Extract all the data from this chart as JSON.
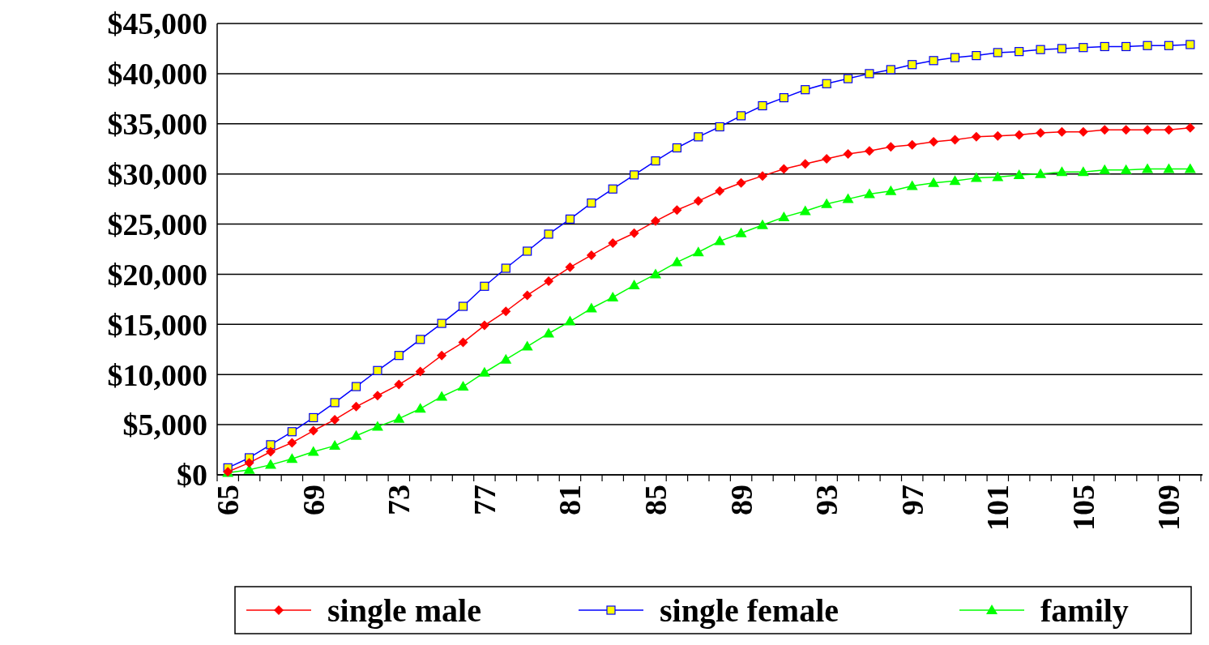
{
  "chart_data": {
    "type": "line",
    "categories": [
      "65",
      null,
      null,
      null,
      "69",
      null,
      null,
      null,
      "73",
      null,
      null,
      null,
      "77",
      null,
      null,
      null,
      "81",
      null,
      null,
      null,
      "85",
      null,
      null,
      null,
      "89",
      null,
      null,
      null,
      "93",
      null,
      null,
      null,
      "97",
      null,
      null,
      null,
      "101",
      null,
      null,
      null,
      "105",
      null,
      null,
      null,
      "109",
      null
    ],
    "series": [
      {
        "name": "single male",
        "color": "#ff0000",
        "marker": "diamond",
        "values": [
          300,
          1200,
          2300,
          3200,
          4400,
          5500,
          6800,
          7900,
          9000,
          10300,
          11900,
          13200,
          14900,
          16300,
          17900,
          19300,
          20700,
          21900,
          23100,
          24100,
          25300,
          26400,
          27300,
          28300,
          29100,
          29800,
          30500,
          31000,
          31500,
          32000,
          32300,
          32700,
          32900,
          33200,
          33400,
          33700,
          33800,
          33900,
          34100,
          34200,
          34200,
          34400,
          34400,
          34400,
          34400,
          34600
        ]
      },
      {
        "name": "single female",
        "color": "#0000ff",
        "marker": "square",
        "values": [
          700,
          1700,
          3000,
          4300,
          5700,
          7200,
          8800,
          10400,
          11900,
          13500,
          15100,
          16800,
          18800,
          20600,
          22300,
          24000,
          25500,
          27100,
          28500,
          29900,
          31300,
          32600,
          33700,
          34700,
          35800,
          36800,
          37600,
          38400,
          39000,
          39500,
          40000,
          40400,
          40900,
          41300,
          41600,
          41800,
          42100,
          42200,
          42400,
          42500,
          42600,
          42700,
          42700,
          42800,
          42800,
          42900
        ]
      },
      {
        "name": "family",
        "color": "#00ff00",
        "marker": "triangle",
        "values": [
          200,
          500,
          1000,
          1600,
          2300,
          2900,
          3900,
          4800,
          5600,
          6600,
          7800,
          8800,
          10200,
          11500,
          12800,
          14100,
          15300,
          16600,
          17700,
          18900,
          20000,
          21200,
          22200,
          23300,
          24100,
          24900,
          25700,
          26300,
          27000,
          27500,
          28000,
          28300,
          28800,
          29100,
          29300,
          29600,
          29700,
          29900,
          30000,
          30200,
          30200,
          30400,
          30400,
          30500,
          30500,
          30500
        ]
      }
    ],
    "ylim": [
      0,
      45000
    ],
    "yticks": [
      {
        "value": 0,
        "label": "$0"
      },
      {
        "value": 5000,
        "label": "$5,000"
      },
      {
        "value": 10000,
        "label": "$10,000"
      },
      {
        "value": 15000,
        "label": "$15,000"
      },
      {
        "value": 20000,
        "label": "$20,000"
      },
      {
        "value": 25000,
        "label": "$25,000"
      },
      {
        "value": 30000,
        "label": "$30,000"
      },
      {
        "value": 35000,
        "label": "$35,000"
      },
      {
        "value": 40000,
        "label": "$40,000"
      },
      {
        "value": 45000,
        "label": "$45,000"
      }
    ],
    "grid": "y",
    "legend": "bottom"
  }
}
